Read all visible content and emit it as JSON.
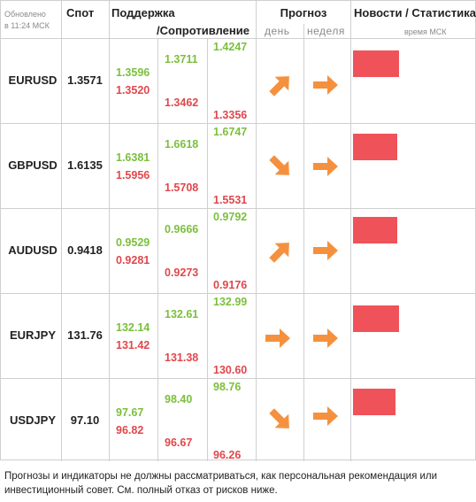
{
  "header": {
    "updated_label": "Обновлено",
    "updated_time": "в 11:24 МСК",
    "spot": "Спот",
    "support": "Поддержка",
    "resistance": "/Сопротивление",
    "forecast": "Прогноз",
    "day": "день",
    "week": "неделя",
    "news": "Новости / Статистика",
    "time_msk": "время МСК"
  },
  "colors": {
    "support_color": "#7bbf3c",
    "resistance_color": "#e0474c",
    "arrow_color": "#f5913e",
    "news_bar_color": "#ef5359"
  },
  "rows": [
    {
      "pair": "EURUSD",
      "spot": "1.3571",
      "col1": {
        "green": "1.3596",
        "red": "1.3520"
      },
      "col2": {
        "green": "1.3711",
        "red": "1.3462"
      },
      "col3": {
        "green": "1.4247",
        "red": "1.3356"
      },
      "day_direction": "up-right",
      "week_direction": "right"
    },
    {
      "pair": "GBPUSD",
      "spot": "1.6135",
      "col1": {
        "green": "1.6381",
        "red": "1.5956"
      },
      "col2": {
        "green": "1.6618",
        "red": "1.5708"
      },
      "col3": {
        "green": "1.6747",
        "red": "1.5531"
      },
      "day_direction": "down-right",
      "week_direction": "right"
    },
    {
      "pair": "AUDUSD",
      "spot": "0.9418",
      "col1": {
        "green": "0.9529",
        "red": "0.9281"
      },
      "col2": {
        "green": "0.9666",
        "red": "0.9273"
      },
      "col3": {
        "green": "0.9792",
        "red": "0.9176"
      },
      "day_direction": "up-right",
      "week_direction": "right"
    },
    {
      "pair": "EURJPY",
      "spot": "131.76",
      "col1": {
        "green": "132.14",
        "red": "131.42"
      },
      "col2": {
        "green": "132.61",
        "red": "131.38"
      },
      "col3": {
        "green": "132.99",
        "red": "130.60"
      },
      "day_direction": "right",
      "week_direction": "right"
    },
    {
      "pair": "USDJPY",
      "spot": "97.10",
      "col1": {
        "green": "97.67",
        "red": "96.82"
      },
      "col2": {
        "green": "98.40",
        "red": "96.67"
      },
      "col3": {
        "green": "98.76",
        "red": "96.26"
      },
      "day_direction": "down-right",
      "week_direction": "right"
    }
  ],
  "disclaimer": "Прогнозы и индикаторы не должны рассматриваться, как персональная рекомендация или инвестиционный совет. См. полный отказ от рисков ниже."
}
